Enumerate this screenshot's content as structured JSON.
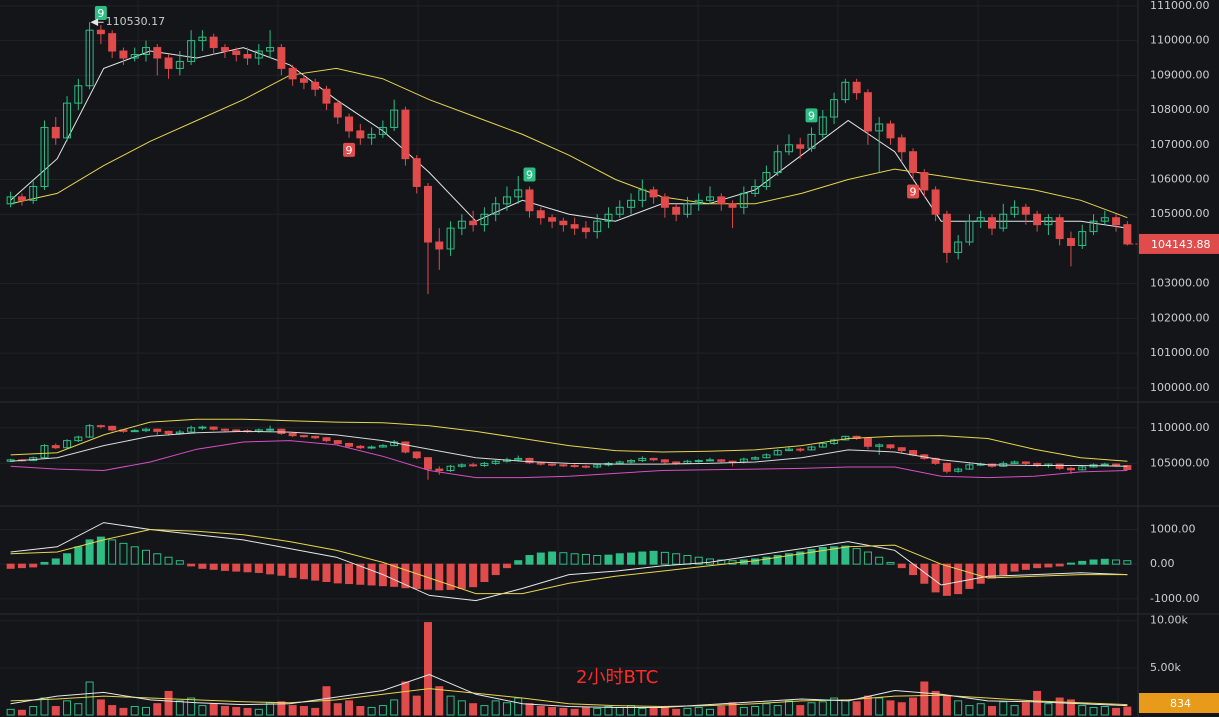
{
  "chart_data": [
    {
      "type": "candlestick",
      "up_color": "#2ebd85",
      "down_color": "#e04b4b",
      "ylim": [
        99650,
        111170
      ],
      "yticks": [
        {
          "value": 111000,
          "label": "111000.00"
        },
        {
          "value": 110000,
          "label": "110000.00"
        },
        {
          "value": 109000,
          "label": "109000.00"
        },
        {
          "value": 108000,
          "label": "108000.00"
        },
        {
          "value": 107000,
          "label": "107000.00"
        },
        {
          "value": 106000,
          "label": "106000.00"
        },
        {
          "value": 105000,
          "label": "105000.00"
        },
        {
          "value": 103000,
          "label": "103000.00"
        },
        {
          "value": 102000,
          "label": "102000.00"
        },
        {
          "value": 101000,
          "label": "101000.00"
        },
        {
          "value": 100000,
          "label": "100000.00"
        }
      ],
      "candles": [
        [
          105300,
          105650,
          105200,
          105500
        ],
        [
          105500,
          105600,
          105250,
          105400
        ],
        [
          105400,
          105950,
          105300,
          105800
        ],
        [
          105800,
          107700,
          105700,
          107500
        ],
        [
          107500,
          107800,
          107000,
          107200
        ],
        [
          107200,
          108400,
          107100,
          108200
        ],
        [
          108200,
          108900,
          108000,
          108700
        ],
        [
          108700,
          110530.17,
          108600,
          110300
        ],
        [
          110300,
          110450,
          109900,
          110200
        ],
        [
          110200,
          110300,
          109500,
          109700
        ],
        [
          109700,
          109800,
          109300,
          109500
        ],
        [
          109500,
          109800,
          109400,
          109600
        ],
        [
          109600,
          110000,
          109400,
          109800
        ],
        [
          109800,
          109900,
          109000,
          109500
        ],
        [
          109500,
          109600,
          108900,
          109200
        ],
        [
          109200,
          109700,
          109000,
          109400
        ],
        [
          109400,
          110300,
          109300,
          110000
        ],
        [
          110000,
          110300,
          109700,
          110100
        ],
        [
          110100,
          110200,
          109600,
          109800
        ],
        [
          109800,
          109900,
          109500,
          109700
        ],
        [
          109700,
          109800,
          109400,
          109600
        ],
        [
          109600,
          109800,
          109300,
          109500
        ],
        [
          109500,
          109900,
          109300,
          109700
        ],
        [
          109700,
          110300,
          109500,
          109800
        ],
        [
          109800,
          109900,
          109000,
          109200
        ],
        [
          109200,
          109300,
          108700,
          108900
        ],
        [
          108900,
          109000,
          108600,
          108800
        ],
        [
          108800,
          108900,
          108400,
          108600
        ],
        [
          108600,
          108700,
          108000,
          108200
        ],
        [
          108200,
          108300,
          107600,
          107800
        ],
        [
          107800,
          107900,
          107200,
          107400
        ],
        [
          107400,
          107600,
          107000,
          107200
        ],
        [
          107200,
          107500,
          107000,
          107300
        ],
        [
          107300,
          107700,
          107200,
          107500
        ],
        [
          107500,
          108300,
          107400,
          108000
        ],
        [
          108000,
          108100,
          106400,
          106600
        ],
        [
          106600,
          106700,
          105600,
          105800
        ],
        [
          105800,
          105900,
          102700,
          104200
        ],
        [
          104200,
          104600,
          103400,
          104000
        ],
        [
          104000,
          104800,
          103800,
          104600
        ],
        [
          104600,
          105000,
          104400,
          104800
        ],
        [
          104800,
          105100,
          104500,
          104700
        ],
        [
          104700,
          105200,
          104500,
          105000
        ],
        [
          105000,
          105500,
          104800,
          105300
        ],
        [
          105300,
          105800,
          105100,
          105500
        ],
        [
          105500,
          106100,
          105300,
          105700
        ],
        [
          105700,
          105800,
          104900,
          105100
        ],
        [
          105100,
          105200,
          104700,
          104900
        ],
        [
          104900,
          105000,
          104600,
          104800
        ],
        [
          104800,
          104900,
          104500,
          104700
        ],
        [
          104700,
          104900,
          104400,
          104600
        ],
        [
          104600,
          104800,
          104300,
          104500
        ],
        [
          104500,
          105000,
          104300,
          104800
        ],
        [
          104800,
          105200,
          104600,
          105000
        ],
        [
          105000,
          105400,
          104900,
          105200
        ],
        [
          105200,
          105600,
          105000,
          105400
        ],
        [
          105400,
          106000,
          105200,
          105700
        ],
        [
          105700,
          105800,
          105300,
          105500
        ],
        [
          105500,
          105600,
          104900,
          105200
        ],
        [
          105200,
          105300,
          104800,
          105000
        ],
        [
          105000,
          105500,
          104900,
          105300
        ],
        [
          105300,
          105600,
          105100,
          105400
        ],
        [
          105400,
          105800,
          105300,
          105500
        ],
        [
          105500,
          105600,
          105100,
          105300
        ],
        [
          105300,
          105400,
          104600,
          105200
        ],
        [
          105200,
          105800,
          105000,
          105600
        ],
        [
          105600,
          106000,
          105500,
          105800
        ],
        [
          105800,
          106400,
          105700,
          106200
        ],
        [
          106200,
          107000,
          106100,
          106800
        ],
        [
          106800,
          107300,
          106700,
          107000
        ],
        [
          107000,
          107200,
          106600,
          106900
        ],
        [
          106900,
          107500,
          106800,
          107300
        ],
        [
          107300,
          108000,
          107200,
          107800
        ],
        [
          107800,
          108500,
          107600,
          108300
        ],
        [
          108300,
          108900,
          108200,
          108800
        ],
        [
          108800,
          108900,
          108300,
          108500
        ],
        [
          108500,
          108600,
          107000,
          107400
        ],
        [
          107400,
          107800,
          106200,
          107600
        ],
        [
          107600,
          107700,
          107000,
          107200
        ],
        [
          107200,
          107300,
          106500,
          106800
        ],
        [
          106800,
          106900,
          106000,
          106200
        ],
        [
          106200,
          106300,
          105500,
          105700
        ],
        [
          105700,
          105800,
          104800,
          105000
        ],
        [
          105000,
          105100,
          103600,
          103900
        ],
        [
          103900,
          104400,
          103700,
          104200
        ],
        [
          104200,
          105000,
          104100,
          104800
        ],
        [
          104800,
          105100,
          104600,
          104900
        ],
        [
          104900,
          105000,
          104400,
          104600
        ],
        [
          104600,
          105300,
          104500,
          105000
        ],
        [
          105000,
          105400,
          104900,
          105200
        ],
        [
          105200,
          105300,
          104700,
          105000
        ],
        [
          105000,
          105100,
          104500,
          104700
        ],
        [
          104700,
          105000,
          104400,
          104900
        ],
        [
          104900,
          105000,
          104100,
          104300
        ],
        [
          104300,
          104500,
          103500,
          104100
        ],
        [
          104100,
          104700,
          104000,
          104500
        ],
        [
          104500,
          105000,
          104400,
          104800
        ],
        [
          104800,
          105100,
          104700,
          104900
        ],
        [
          104900,
          105000,
          104500,
          104700
        ],
        [
          104700,
          104800,
          104100,
          104143.88
        ]
      ],
      "series": [
        {
          "color": "#e6e6e6",
          "values": [
            105400,
            106600,
            109200,
            109700,
            109500,
            109800,
            109300,
            108300,
            107400,
            106200,
            104800,
            105400,
            105000,
            104800,
            105300,
            105300,
            105700,
            106700,
            107700,
            106800,
            104800,
            104800,
            104800,
            104800,
            104600
          ]
        },
        {
          "color": "#e8d44d",
          "values": [
            105300,
            105600,
            106400,
            107100,
            107700,
            108300,
            109000,
            109200,
            108900,
            108300,
            107800,
            107300,
            106700,
            106000,
            105500,
            105300,
            105300,
            105600,
            106000,
            106300,
            106100,
            105900,
            105700,
            105400,
            104900
          ]
        }
      ],
      "markers": [
        {
          "label": "9",
          "candle": 8,
          "color": "#2ebd85",
          "position": "above"
        },
        {
          "label": "9",
          "candle": 46,
          "color": "#2ebd85",
          "position": "above"
        },
        {
          "label": "9",
          "candle": 71,
          "color": "#2ebd85",
          "position": "above"
        },
        {
          "label": "9",
          "candle": 30,
          "color": "#e04b4b",
          "position": "below"
        },
        {
          "label": "9",
          "candle": 80,
          "color": "#e04b4b",
          "position": "below"
        }
      ]
    },
    {
      "type": "overlay",
      "ylim": [
        99300,
        113200
      ],
      "yticks": [
        {
          "value": 110000,
          "label": "110000.00"
        },
        {
          "value": 105000,
          "label": "105000.00"
        }
      ],
      "series": [
        {
          "color": "#e8d44d",
          "values": [
            106200,
            106500,
            109000,
            110800,
            111200,
            111200,
            111000,
            110800,
            110700,
            110300,
            109500,
            108500,
            107500,
            106800,
            106600,
            106700,
            106900,
            107500,
            108500,
            108800,
            108900,
            108500,
            107000,
            105800,
            105300
          ]
        },
        {
          "color": "#d9d9d9",
          "values": [
            105300,
            105800,
            107500,
            108800,
            109300,
            109500,
            109400,
            109000,
            108200,
            107000,
            105800,
            105300,
            105000,
            104900,
            104900,
            105000,
            105200,
            105800,
            106900,
            106600,
            105500,
            104800,
            104700,
            104700,
            104600
          ]
        },
        {
          "color": "#d64fc4",
          "values": [
            104600,
            104200,
            104000,
            105200,
            107000,
            108000,
            108200,
            107600,
            106000,
            104000,
            103000,
            103000,
            103200,
            103600,
            104000,
            104100,
            104200,
            104300,
            104500,
            104500,
            103200,
            103000,
            103200,
            103800,
            104000
          ]
        }
      ]
    },
    {
      "type": "macd",
      "ylim": [
        -1380,
        1620
      ],
      "yticks": [
        {
          "value": 1000,
          "label": "1000.00"
        },
        {
          "value": 0,
          "label": "0.00"
        },
        {
          "value": -1000,
          "label": "-1000.00"
        }
      ],
      "values": [
        -120,
        -100,
        -80,
        50,
        150,
        300,
        500,
        700,
        780,
        700,
        600,
        500,
        400,
        300,
        200,
        100,
        -50,
        -120,
        -150,
        -180,
        -200,
        -220,
        -240,
        -280,
        -320,
        -380,
        -420,
        -460,
        -500,
        -540,
        -560,
        -580,
        -600,
        -620,
        -640,
        -680,
        -700,
        -720,
        -740,
        -730,
        -700,
        -650,
        -500,
        -300,
        -100,
        100,
        250,
        320,
        350,
        330,
        300,
        280,
        250,
        260,
        300,
        320,
        350,
        370,
        340,
        300,
        250,
        200,
        150,
        120,
        100,
        120,
        150,
        200,
        250,
        300,
        350,
        420,
        480,
        500,
        520,
        450,
        350,
        200,
        50,
        -100,
        -300,
        -550,
        -800,
        -900,
        -850,
        -700,
        -550,
        -400,
        -300,
        -200,
        -150,
        -100,
        -80,
        -50,
        30,
        80,
        120,
        140,
        120,
        100
      ],
      "series": [
        {
          "color": "#e6e6e6",
          "values": [
            350,
            500,
            1200,
            1000,
            850,
            700,
            450,
            200,
            -300,
            -900,
            -1050,
            -700,
            -300,
            -200,
            -50,
            50,
            250,
            450,
            650,
            400,
            -600,
            -350,
            -300,
            -250,
            -300
          ]
        },
        {
          "color": "#e8d44d",
          "values": [
            300,
            350,
            700,
            1000,
            950,
            850,
            650,
            400,
            50,
            -400,
            -850,
            -850,
            -550,
            -350,
            -200,
            -50,
            100,
            300,
            500,
            550,
            0,
            -400,
            -350,
            -300,
            -300
          ]
        }
      ]
    },
    {
      "type": "volume",
      "ylim": [
        0,
        10500
      ],
      "yticks": [
        {
          "value": 10000,
          "label": "10.00k"
        },
        {
          "value": 5000,
          "label": "5.00k"
        }
      ],
      "values": [
        600,
        500,
        900,
        1800,
        900,
        1500,
        1200,
        3500,
        1600,
        1000,
        700,
        900,
        800,
        1200,
        2500,
        1500,
        1800,
        1000,
        1200,
        900,
        800,
        700,
        600,
        1300,
        1400,
        1000,
        900,
        700,
        3000,
        1200,
        1500,
        900,
        800,
        1000,
        1600,
        3500,
        2000,
        9800,
        3000,
        2000,
        1500,
        1200,
        1000,
        1500,
        1300,
        1800,
        1200,
        900,
        800,
        700,
        600,
        800,
        700,
        900,
        800,
        1000,
        700,
        800,
        900,
        600,
        700,
        800,
        600,
        900,
        1300,
        800,
        900,
        1200,
        1000,
        1500,
        1000,
        1300,
        1400,
        1800,
        1600,
        1400,
        2000,
        1800,
        1500,
        1300,
        1800,
        3500,
        2500,
        2000,
        1500,
        1000,
        1200,
        900,
        1400,
        1000,
        1300,
        2500,
        1200,
        1800,
        1600,
        1000,
        800,
        900,
        700,
        834
      ],
      "series": [
        {
          "color": "#e8d44d",
          "values": [
            1500,
            1700,
            2000,
            1800,
            1600,
            1400,
            1300,
            1600,
            2200,
            2800,
            2300,
            1800,
            1200,
            1000,
            900,
            1000,
            1200,
            1500,
            1600,
            2000,
            2100,
            1800,
            1500,
            1300,
            1100
          ]
        },
        {
          "color": "#e6e6e6",
          "values": [
            1200,
            2000,
            2400,
            1600,
            1300,
            1100,
            1200,
            1900,
            2600,
            4300,
            2200,
            1200,
            900,
            800,
            800,
            1100,
            1400,
            1700,
            1500,
            2600,
            2200,
            1500,
            1400,
            1200,
            1000
          ]
        }
      ],
      "annotation": "2小时BTC"
    }
  ]
}
